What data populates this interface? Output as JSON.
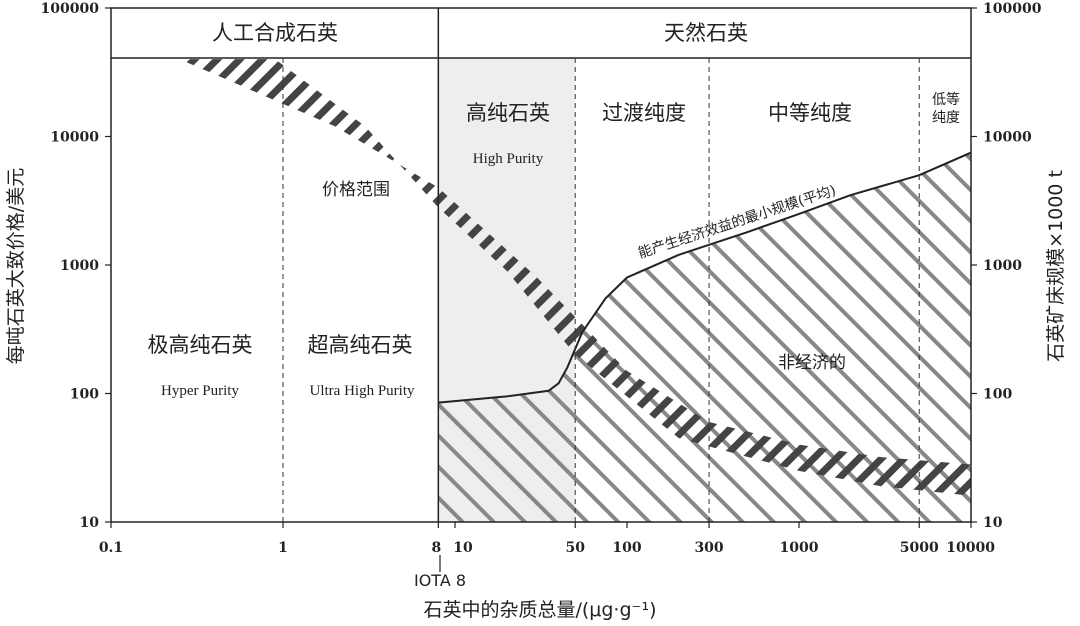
{
  "chart_data": {
    "type": "area",
    "title": "",
    "xlabel": "石英中的杂质总量/(μg·g⁻¹)",
    "ylabel_left": "每吨石英大致价格/美元",
    "ylabel_right": "石英矿床规模×1000 t",
    "x_scale": "log",
    "y_scale": "log",
    "xlim": [
      0.1,
      10000
    ],
    "ylim": [
      10,
      100000
    ],
    "x_ticks": [
      0.1,
      1,
      8,
      10,
      50,
      100,
      300,
      1000,
      5000,
      10000
    ],
    "x_tick_labels": [
      "0.1",
      "1",
      "8",
      "10",
      "50",
      "100",
      "300",
      "1000",
      "5000",
      "10000"
    ],
    "x_marker_label": "IOTA 8",
    "y_ticks": [
      10,
      100,
      1000,
      10000,
      100000
    ],
    "y_tick_labels": [
      "10",
      "100",
      "1000",
      "10000",
      "100000"
    ],
    "y_ticks_right": [
      10,
      100,
      1000,
      10000,
      100000
    ],
    "y_tick_labels_right": [
      "10",
      "100",
      "1000",
      "10000",
      "100000"
    ],
    "categories_top": [
      {
        "label": "人工合成石英",
        "x_range": [
          0.1,
          8
        ]
      },
      {
        "label": "天然石英",
        "x_range": [
          8,
          10000
        ]
      }
    ],
    "regions": [
      {
        "label": "极高纯石英",
        "sublabel": "Hyper Purity",
        "x_range": [
          0.1,
          1
        ]
      },
      {
        "label": "超高纯石英",
        "sublabel": "Ultra High Purity",
        "x_range": [
          1,
          8
        ]
      },
      {
        "label": "高纯石英",
        "sublabel": "High Purity",
        "x_range": [
          8,
          50
        ]
      },
      {
        "label": "过渡纯度",
        "sublabel": "",
        "x_range": [
          50,
          300
        ]
      },
      {
        "label": "中等纯度",
        "sublabel": "",
        "x_range": [
          300,
          5000
        ]
      },
      {
        "label": "低等纯度",
        "sublabel": "",
        "x_range": [
          5000,
          10000
        ]
      }
    ],
    "series": [
      {
        "name": "价格范围",
        "upper": {
          "x": [
            0.25,
            2,
            8,
            30,
            100,
            300,
            1000,
            3000,
            10000
          ],
          "y": [
            40000,
            12000,
            4000,
            800,
            150,
            60,
            40,
            32,
            28
          ]
        },
        "lower": {
          "x": [
            0.9,
            3,
            8,
            20,
            50,
            200,
            1000,
            3000,
            10000
          ],
          "y": [
            40000,
            12000,
            2800,
            900,
            200,
            45,
            25,
            19,
            16
          ]
        }
      },
      {
        "name": "能产生经济效益的最小规模(平均)",
        "x": [
          8,
          20,
          35,
          40,
          45,
          55,
          75,
          100,
          200,
          500,
          1000,
          2000,
          5000,
          10000
        ],
        "y": [
          85,
          95,
          105,
          120,
          160,
          300,
          550,
          800,
          1200,
          1800,
          2500,
          3500,
          5000,
          7500
        ]
      },
      {
        "name": "非经济的",
        "region": "below minimum economic size curve"
      }
    ],
    "highlight_band": {
      "x_range": [
        8,
        50
      ],
      "color": "#eeeeee"
    }
  },
  "colors": {
    "hatch_dark": "#444444",
    "hatch_grey": "#888888",
    "frame": "#222222",
    "high_purity_fill": "#eeeeee"
  }
}
